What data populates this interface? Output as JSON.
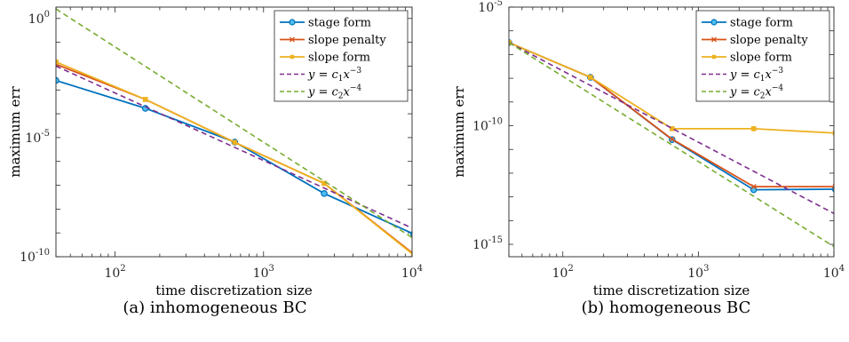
{
  "chart_data": [
    {
      "type": "line",
      "caption": "(a) inhomogeneous BC",
      "xlabel": "time discretization size",
      "ylabel": "maximum err",
      "xscale": "log",
      "yscale": "log",
      "xlim": [
        40,
        10000
      ],
      "ylim": [
        1e-10,
        3
      ],
      "xticks": [
        {
          "value": 100,
          "base": "10",
          "exp": "2"
        },
        {
          "value": 1000,
          "base": "10",
          "exp": "3"
        },
        {
          "value": 10000,
          "base": "10",
          "exp": "4"
        }
      ],
      "yticks": [
        {
          "value": 1e-10,
          "base": "10",
          "exp": "-10"
        },
        {
          "value": 1e-05,
          "base": "10",
          "exp": "-5"
        },
        {
          "value": 1,
          "base": "10",
          "exp": "0"
        }
      ],
      "legend": "top-right",
      "series": [
        {
          "name": "stage form",
          "color": "#0072BD",
          "style": "solid",
          "marker": "circle",
          "x": [
            40,
            160,
            640,
            2560,
            10240
          ],
          "y": [
            0.0025,
            0.00017,
            6.5e-06,
            4.5e-08,
            9e-10
          ]
        },
        {
          "name": "slope penalty",
          "color": "#D95319",
          "style": "solid",
          "marker": "x",
          "x": [
            40,
            160,
            640,
            2560,
            10240
          ],
          "y": [
            0.012,
            0.0004,
            6.3e-06,
            1.2e-07,
            1.3e-10
          ]
        },
        {
          "name": "slope form",
          "color": "#EDB120",
          "style": "solid",
          "marker": "square",
          "x": [
            40,
            160,
            640,
            2560,
            10240
          ],
          "y": [
            0.015,
            0.0004,
            6.3e-06,
            1.2e-07,
            1.2e-10
          ]
        },
        {
          "name": "y = c1x^-3",
          "label_main": "y = c",
          "label_sub": "1",
          "label_after": "x",
          "label_sup": "−3",
          "color": "#7E2F8E",
          "style": "dashed",
          "marker": "none",
          "x": [
            40,
            10240
          ],
          "y": [
            0.01,
            1.5e-09
          ]
        },
        {
          "name": "y = c2x^-4",
          "label_main": "y = c",
          "label_sub": "2",
          "label_after": "x",
          "label_sup": "−4",
          "color": "#77AC30",
          "style": "dashed",
          "marker": "none",
          "x": [
            40,
            10240
          ],
          "y": [
            2.5,
            5.8e-10
          ]
        }
      ]
    },
    {
      "type": "line",
      "caption": "(b) homogeneous BC",
      "xlabel": "time discretization size",
      "ylabel": "maximum err",
      "xscale": "log",
      "yscale": "log",
      "xlim": [
        40,
        10000
      ],
      "ylim": [
        3e-16,
        1e-05
      ],
      "xticks": [
        {
          "value": 100,
          "base": "10",
          "exp": "2"
        },
        {
          "value": 1000,
          "base": "10",
          "exp": "3"
        },
        {
          "value": 10000,
          "base": "10",
          "exp": "4"
        }
      ],
      "yticks": [
        {
          "value": 1e-15,
          "base": "10",
          "exp": "-15"
        },
        {
          "value": 1e-10,
          "base": "10",
          "exp": "-10"
        },
        {
          "value": 1e-05,
          "base": "10",
          "exp": "-5"
        }
      ],
      "legend": "top-right",
      "series": [
        {
          "name": "stage form",
          "color": "#0072BD",
          "style": "solid",
          "marker": "circle",
          "x": [
            40,
            160,
            640,
            2560,
            10240
          ],
          "y": [
            3.2e-07,
            1.1e-08,
            2.6e-11,
            2e-13,
            2.1e-13
          ]
        },
        {
          "name": "slope penalty",
          "color": "#D95319",
          "style": "solid",
          "marker": "x",
          "x": [
            40,
            160,
            640,
            2560,
            10240
          ],
          "y": [
            3.2e-07,
            1.1e-08,
            2.7e-11,
            2.7e-13,
            2.7e-13
          ]
        },
        {
          "name": "slope form",
          "color": "#EDB120",
          "style": "solid",
          "marker": "square",
          "x": [
            40,
            160,
            640,
            2560,
            10240
          ],
          "y": [
            3.2e-07,
            1.1e-08,
            7.5e-11,
            7.5e-11,
            4.9e-11
          ]
        },
        {
          "name": "y = c1x^-3",
          "label_main": "y = c",
          "label_sub": "1",
          "label_after": "x",
          "label_sup": "−3",
          "color": "#7E2F8E",
          "style": "dashed",
          "marker": "none",
          "x": [
            40,
            10000
          ],
          "y": [
            3.2e-07,
            2e-14
          ]
        },
        {
          "name": "y = c2x^-4",
          "label_main": "y = c",
          "label_sub": "2",
          "label_after": "x",
          "label_sup": "−4",
          "color": "#77AC30",
          "style": "dashed",
          "marker": "none",
          "x": [
            40,
            10000
          ],
          "y": [
            3.2e-07,
            8e-16
          ]
        }
      ]
    }
  ]
}
